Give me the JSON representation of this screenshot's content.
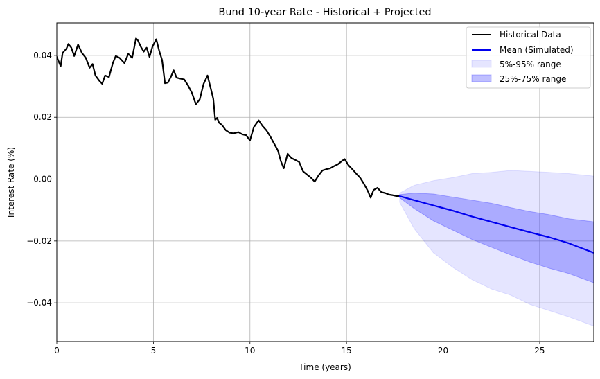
{
  "chart_data": {
    "type": "line",
    "title": "Bund 10-year Rate - Historical + Projected",
    "xlabel": "Time (years)",
    "ylabel": "Interest Rate (%)",
    "xlim": [
      0,
      27.8
    ],
    "ylim": [
      -0.0525,
      0.0505
    ],
    "x_ticks": [
      0,
      5,
      10,
      15,
      20,
      25
    ],
    "y_ticks": [
      -0.04,
      -0.02,
      0.0,
      0.02,
      0.04
    ],
    "x_tick_labels": [
      "0",
      "5",
      "10",
      "15",
      "20",
      "25"
    ],
    "y_tick_labels": [
      "−0.04",
      "−0.02",
      "0.00",
      "0.02",
      "0.04"
    ],
    "grid": true,
    "legend_position": "top-right",
    "series": [
      {
        "name": "Historical Data",
        "color": "#000000",
        "x": [
          0,
          0.2,
          0.3,
          0.5,
          0.6,
          0.75,
          0.9,
          1.1,
          1.3,
          1.5,
          1.7,
          1.85,
          2.0,
          2.2,
          2.35,
          2.5,
          2.7,
          2.9,
          3.05,
          3.25,
          3.5,
          3.7,
          3.9,
          4.1,
          4.2,
          4.35,
          4.5,
          4.65,
          4.8,
          4.95,
          5.15,
          5.3,
          5.45,
          5.6,
          5.75,
          5.9,
          6.05,
          6.2,
          6.4,
          6.6,
          6.8,
          7.0,
          7.2,
          7.4,
          7.6,
          7.8,
          7.95,
          8.1,
          8.2,
          8.3,
          8.4,
          8.55,
          8.75,
          8.95,
          9.15,
          9.4,
          9.6,
          9.8,
          10.0,
          10.2,
          10.45,
          10.65,
          10.85,
          11.05,
          11.25,
          11.45,
          11.6,
          11.75,
          11.95,
          12.15,
          12.35,
          12.55,
          12.75,
          12.95,
          13.15,
          13.35,
          13.55,
          13.75,
          13.95,
          14.15,
          14.35,
          14.55,
          14.75,
          14.9,
          15.1,
          15.3,
          15.5,
          15.7,
          15.9,
          16.1,
          16.25,
          16.4,
          16.6,
          16.8,
          17.0,
          17.2,
          17.4,
          17.6,
          17.75
        ],
        "values": [
          0.0395,
          0.0365,
          0.0408,
          0.0422,
          0.0437,
          0.0425,
          0.0398,
          0.0435,
          0.0408,
          0.0392,
          0.036,
          0.0372,
          0.0335,
          0.0318,
          0.0308,
          0.0335,
          0.033,
          0.0375,
          0.0398,
          0.0392,
          0.0375,
          0.0405,
          0.0392,
          0.0455,
          0.0448,
          0.0428,
          0.0412,
          0.0425,
          0.0395,
          0.0428,
          0.0452,
          0.0415,
          0.0385,
          0.031,
          0.0312,
          0.033,
          0.0352,
          0.0328,
          0.0325,
          0.0322,
          0.0302,
          0.0278,
          0.0242,
          0.0258,
          0.0308,
          0.0335,
          0.0298,
          0.026,
          0.0192,
          0.0198,
          0.0182,
          0.0175,
          0.0158,
          0.015,
          0.0148,
          0.0152,
          0.0145,
          0.0142,
          0.0125,
          0.0168,
          0.019,
          0.0172,
          0.0158,
          0.0138,
          0.0115,
          0.0092,
          0.0058,
          0.0035,
          0.0082,
          0.0068,
          0.0062,
          0.0055,
          0.0025,
          0.0015,
          0.0005,
          -0.0008,
          0.0012,
          0.0028,
          0.0032,
          0.0035,
          0.0042,
          0.0048,
          0.0058,
          0.0065,
          0.0045,
          0.0032,
          0.0018,
          0.0005,
          -0.0015,
          -0.0038,
          -0.006,
          -0.0035,
          -0.0028,
          -0.0042,
          -0.0045,
          -0.005,
          -0.0052,
          -0.0055,
          -0.0055
        ]
      },
      {
        "name": "Mean (Simulated)",
        "color": "#0000ee",
        "x": [
          17.75,
          18.5,
          19.5,
          20.5,
          21.5,
          22.5,
          23.5,
          24.5,
          25.5,
          26.5,
          27.8
        ],
        "values": [
          -0.0055,
          -0.0068,
          -0.0085,
          -0.0102,
          -0.0121,
          -0.0138,
          -0.0155,
          -0.0172,
          -0.0188,
          -0.0207,
          -0.0238
        ]
      }
    ],
    "bands": [
      {
        "name": "5%-95% range",
        "color": "#0000ff",
        "opacity": 0.1,
        "x": [
          17.75,
          18.5,
          19.5,
          20.5,
          21.5,
          22.5,
          23.5,
          24.5,
          25.5,
          26.5,
          27.8
        ],
        "lower": [
          -0.0075,
          -0.016,
          -0.0238,
          -0.0285,
          -0.0325,
          -0.0355,
          -0.0375,
          -0.0405,
          -0.0425,
          -0.0445,
          -0.0475
        ],
        "upper": [
          -0.0045,
          -0.002,
          -0.0005,
          0.0005,
          0.0018,
          0.0022,
          0.0028,
          0.0025,
          0.0022,
          0.0018,
          0.001
        ]
      },
      {
        "name": "25%-75% range",
        "color": "#0000ff",
        "opacity": 0.25,
        "x": [
          17.75,
          18.5,
          19.5,
          20.5,
          21.5,
          22.5,
          23.5,
          24.5,
          25.5,
          26.5,
          27.8
        ],
        "lower": [
          -0.006,
          -0.0095,
          -0.0135,
          -0.0165,
          -0.0195,
          -0.022,
          -0.0245,
          -0.0268,
          -0.0288,
          -0.0305,
          -0.0335
        ],
        "upper": [
          -0.005,
          -0.0045,
          -0.0048,
          -0.0058,
          -0.0068,
          -0.0078,
          -0.0092,
          -0.0105,
          -0.0115,
          -0.0128,
          -0.0138
        ]
      }
    ]
  }
}
